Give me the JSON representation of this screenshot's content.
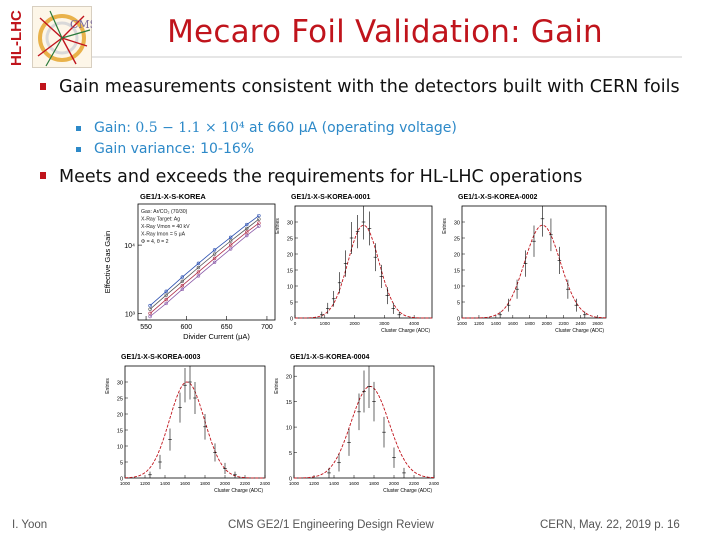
{
  "header": {
    "side_logo_text": "HL-LHC",
    "logo_text": "CMS",
    "title": "Mecaro Foil Validation: Gain"
  },
  "bullets": [
    {
      "text": "Gain measurements consistent with the detectors built with CERN foils",
      "sub": [
        {
          "prefix": "Gain: ",
          "math": "0.5 − 1.1 × 10⁴",
          "suffix": " at 660 μA (operating voltage)"
        },
        {
          "text": "Gain variance: 10-16%"
        }
      ]
    },
    {
      "text": "Meets and exceeds the requirements for HL-LHC operations"
    }
  ],
  "chart_data": [
    {
      "type": "scatter",
      "title": "GE1/1-X-S-KOREA",
      "annotations": [
        "Gas: Ar/CO₂ (70/30)",
        "X-Ray Target: Ag",
        "X-Ray Vmon = 40 kV",
        "X-Ray Imon = 5 μA",
        "Φ = 4, θ = 2"
      ],
      "xlabel": "Divider Current (μA)",
      "ylabel": "Effective Gas Gain",
      "x_ticks": [
        "550",
        "600",
        "650",
        "700"
      ],
      "y_ticks": [
        "10³",
        "10⁴"
      ],
      "log_y": true,
      "xlim": [
        540,
        710
      ],
      "ylim": [
        800,
        40000
      ],
      "series": [
        {
          "color": "#2a4fb0",
          "x": [
            555,
            575,
            595,
            615,
            635,
            655,
            675,
            690
          ],
          "y": [
            1300,
            2100,
            3400,
            5400,
            8500,
            13000,
            20000,
            27000
          ]
        },
        {
          "color": "#555555",
          "x": [
            555,
            575,
            595,
            615,
            635,
            655,
            675,
            690
          ],
          "y": [
            1150,
            1850,
            2950,
            4700,
            7400,
            11500,
            17500,
            24000
          ]
        },
        {
          "color": "#b0304a",
          "x": [
            555,
            575,
            595,
            615,
            635,
            655,
            675,
            690
          ],
          "y": [
            1000,
            1600,
            2550,
            4050,
            6400,
            10000,
            15500,
            21000
          ]
        },
        {
          "color": "#8a5aa8",
          "x": [
            555,
            575,
            595,
            615,
            635,
            655,
            675,
            690
          ],
          "y": [
            900,
            1400,
            2250,
            3550,
            5600,
            8800,
            13800,
            19000
          ]
        }
      ]
    },
    {
      "type": "histogram",
      "title": "GE1/1-X-S-KOREA-0001",
      "xlabel": "Cluster Charge (ADC)",
      "ylabel": "Entries",
      "y_ticks": [
        "0",
        "5",
        "10",
        "15",
        "20",
        "25",
        "30"
      ],
      "x_ticks": [
        "0",
        "1000",
        "2000",
        "3000",
        "4000"
      ],
      "xlim": [
        0,
        4600
      ],
      "ylim": [
        0,
        35
      ],
      "fit": {
        "mean": 2300,
        "sigma": 520,
        "amp": 29
      },
      "points_x": [
        900,
        1100,
        1300,
        1500,
        1700,
        1900,
        2100,
        2300,
        2500,
        2700,
        2900,
        3100,
        3300,
        3500
      ],
      "points_y": [
        1,
        3,
        6,
        11,
        17,
        25,
        27,
        30,
        28,
        19,
        13,
        7,
        3,
        1
      ]
    },
    {
      "type": "histogram",
      "title": "GE1/1-X-S-KOREA-0002",
      "xlabel": "Cluster Charge (ADC)",
      "ylabel": "Entries",
      "y_ticks": [
        "0",
        "5",
        "10",
        "15",
        "20",
        "25",
        "30"
      ],
      "x_ticks": [
        "1000",
        "1200",
        "1400",
        "1600",
        "1800",
        "2000",
        "2200",
        "2400",
        "2600"
      ],
      "xlim": [
        1000,
        2700
      ],
      "ylim": [
        0,
        35
      ],
      "fit": {
        "mean": 1950,
        "sigma": 210,
        "amp": 29
      },
      "points_x": [
        1450,
        1550,
        1650,
        1750,
        1850,
        1950,
        2050,
        2150,
        2250,
        2350,
        2450
      ],
      "points_y": [
        1,
        4,
        9,
        17,
        24,
        31,
        26,
        18,
        9,
        4,
        1
      ]
    },
    {
      "type": "histogram",
      "title": "GE1/1-X-S-KOREA-0003",
      "xlabel": "Cluster Charge (ADC)",
      "ylabel": "Entries",
      "y_ticks": [
        "0",
        "5",
        "10",
        "15",
        "20",
        "25",
        "30"
      ],
      "x_ticks": [
        "1000",
        "1200",
        "1400",
        "1600",
        "1800",
        "2000",
        "2200",
        "2400"
      ],
      "xlim": [
        1000,
        2400
      ],
      "ylim": [
        0,
        35
      ],
      "fit": {
        "mean": 1620,
        "sigma": 175,
        "amp": 30
      },
      "points_x": [
        1250,
        1350,
        1450,
        1550,
        1600,
        1650,
        1700,
        1800,
        1900,
        2000,
        2100
      ],
      "points_y": [
        1,
        5,
        12,
        22,
        29,
        30,
        25,
        16,
        8,
        3,
        1
      ]
    },
    {
      "type": "histogram",
      "title": "GE1/1-X-S-KOREA-0004",
      "xlabel": "Cluster Charge (ADC)",
      "ylabel": "Entries",
      "y_ticks": [
        "0",
        "5",
        "10",
        "15",
        "20"
      ],
      "x_ticks": [
        "1000",
        "1200",
        "1400",
        "1600",
        "1800",
        "2000",
        "2200",
        "2400"
      ],
      "xlim": [
        1000,
        2400
      ],
      "ylim": [
        0,
        22
      ],
      "fit": {
        "mean": 1760,
        "sigma": 190,
        "amp": 18
      },
      "points_x": [
        1350,
        1450,
        1550,
        1650,
        1700,
        1750,
        1800,
        1900,
        2000,
        2100
      ],
      "points_y": [
        1,
        3,
        7,
        13,
        17,
        18,
        15,
        9,
        4,
        1
      ]
    }
  ],
  "footer": {
    "author": "I. Yoon",
    "event": "CMS GE2/1 Engineering Design Review",
    "place_date": "CERN, May. 22, 2019",
    "page": "p. 16"
  }
}
